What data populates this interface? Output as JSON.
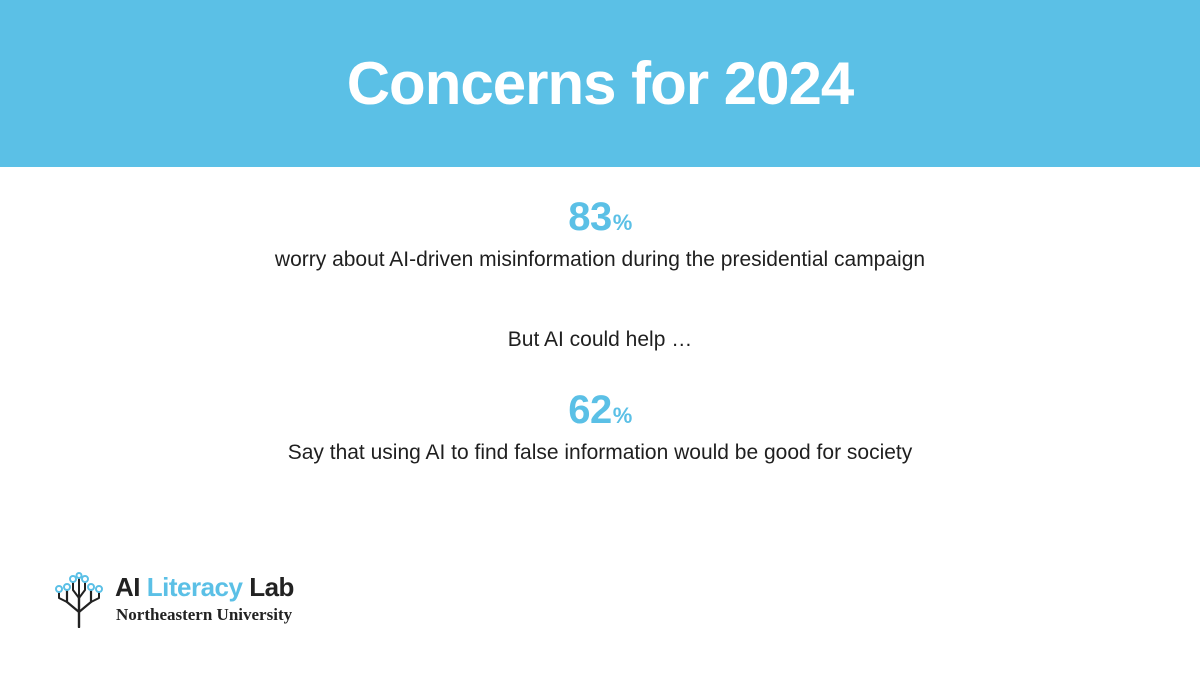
{
  "theme": {
    "accent_color": "#5bc0e6",
    "text_color": "#1f1f1f"
  },
  "header": {
    "title": "Concerns for 2024"
  },
  "stats": [
    {
      "value": "83",
      "unit": "%",
      "description": "worry about AI-driven misinformation during the presidential campaign"
    },
    {
      "value": "62",
      "unit": "%",
      "description": "Say that using AI to find false information would be good for society"
    }
  ],
  "transition_text": "But AI could help …",
  "logo": {
    "icon": "tree-circuit-icon",
    "title_part1": "AI",
    "title_part2": "Literacy",
    "title_part3": "Lab",
    "subtitle": "Northeastern University"
  }
}
